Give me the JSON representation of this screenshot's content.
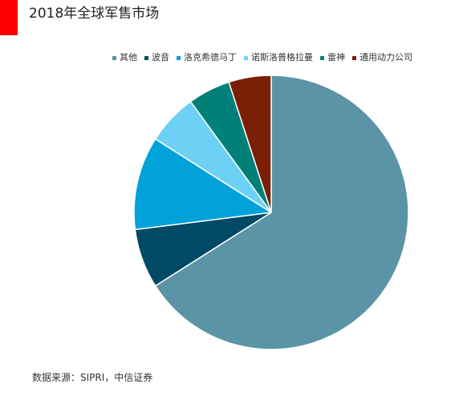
{
  "header": {
    "title": "2018年全球军售市场",
    "accent_color": "#ff0000"
  },
  "chart_data": {
    "type": "pie",
    "title": "2018年全球军售市场",
    "legend_position": "top",
    "slices": [
      {
        "name": "其他",
        "value": 66.0,
        "color": "#5b93a7"
      },
      {
        "name": "波音",
        "value": 7.0,
        "color": "#004a67"
      },
      {
        "name": "洛克希德马丁",
        "value": 11.0,
        "color": "#00a2d9"
      },
      {
        "name": "诺斯洛普格拉曼",
        "value": 6.0,
        "color": "#6dd1f5"
      },
      {
        "name": "雷神",
        "value": 5.0,
        "color": "#008078"
      },
      {
        "name": "通用动力公司",
        "value": 5.0,
        "color": "#7a1e05"
      }
    ]
  },
  "footer": {
    "source": "数据来源：SIPRI，中信证券"
  }
}
